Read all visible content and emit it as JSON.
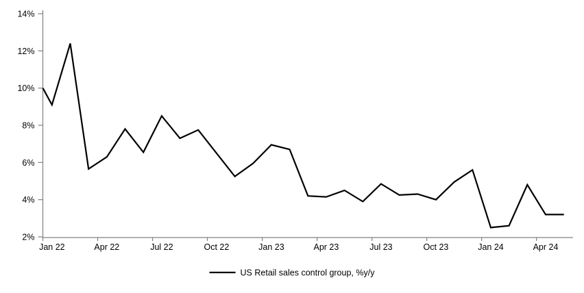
{
  "chart_data": {
    "type": "line",
    "title": "",
    "xlabel": "",
    "ylabel": "",
    "grid": false,
    "legend_position": "bottom-center",
    "background_color": "#ffffff",
    "line_color": "#000000",
    "axis_color": "#808080",
    "ylim": [
      2,
      14
    ],
    "y_tick_labels": [
      "2%",
      "4%",
      "6%",
      "8%",
      "10%",
      "12%",
      "14%"
    ],
    "x_tick_labels": [
      "Jan 22",
      "Apr 22",
      "Jul 22",
      "Oct 22",
      "Jan 23",
      "Apr 23",
      "Jul 23",
      "Oct 23",
      "Jan 24",
      "Apr 24"
    ],
    "categories": [
      "Jan 22",
      "Feb 22",
      "Mar 22",
      "Apr 22",
      "May 22",
      "Jun 22",
      "Jul 22",
      "Aug 22",
      "Sep 22",
      "Oct 22",
      "Nov 22",
      "Dec 22",
      "Jan 23",
      "Feb 23",
      "Mar 23",
      "Apr 23",
      "May 23",
      "Jun 23",
      "Jul 23",
      "Aug 23",
      "Sep 23",
      "Oct 23",
      "Nov 23",
      "Dec 23",
      "Jan 24",
      "Feb 24",
      "Mar 24",
      "Apr 24",
      "May 24"
    ],
    "series": [
      {
        "name": "US Retail sales control group, %y/y",
        "values": [
          9.1,
          12.4,
          5.65,
          6.3,
          7.8,
          6.55,
          8.5,
          7.3,
          7.75,
          6.5,
          5.25,
          5.95,
          6.95,
          6.7,
          4.2,
          4.15,
          4.5,
          3.9,
          4.85,
          4.25,
          4.3,
          4.0,
          4.95,
          5.6,
          2.5,
          2.6,
          4.8,
          3.2,
          3.2
        ]
      }
    ],
    "clipped_left_edge_value": 10.0
  }
}
